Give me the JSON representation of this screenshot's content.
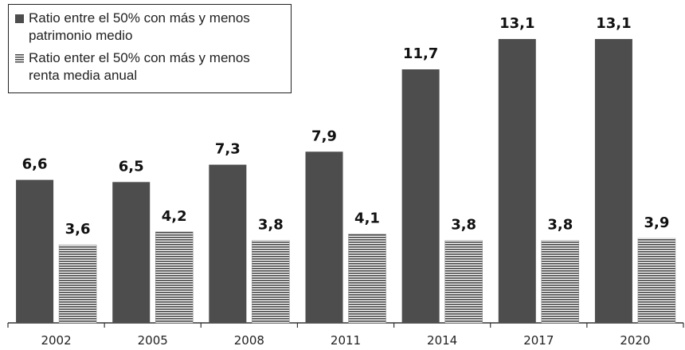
{
  "chart_data": {
    "type": "bar",
    "categories": [
      "2002",
      "2005",
      "2008",
      "2011",
      "2014",
      "2017",
      "2020"
    ],
    "series": [
      {
        "name": "Ratio entre el 50% con más y menos patrimonio medio",
        "color": "#4d4d4d",
        "pattern": "solid",
        "values": [
          6.6,
          6.5,
          7.3,
          7.9,
          11.7,
          13.1,
          13.1
        ],
        "value_labels": [
          "6,6",
          "6,5",
          "7,3",
          "7,9",
          "11,7",
          "13,1",
          "13,1"
        ]
      },
      {
        "name": "Ratio enter el 50% con más y menos renta media anual",
        "color": "#555555",
        "pattern": "horizontal-stripes",
        "values": [
          3.6,
          4.2,
          3.8,
          4.1,
          3.8,
          3.8,
          3.9
        ],
        "value_labels": [
          "3,6",
          "4,2",
          "3,8",
          "4,1",
          "3,8",
          "3,8",
          "3,9"
        ]
      }
    ],
    "ylim": [
      0,
      14.9
    ],
    "legend": "top-left"
  }
}
